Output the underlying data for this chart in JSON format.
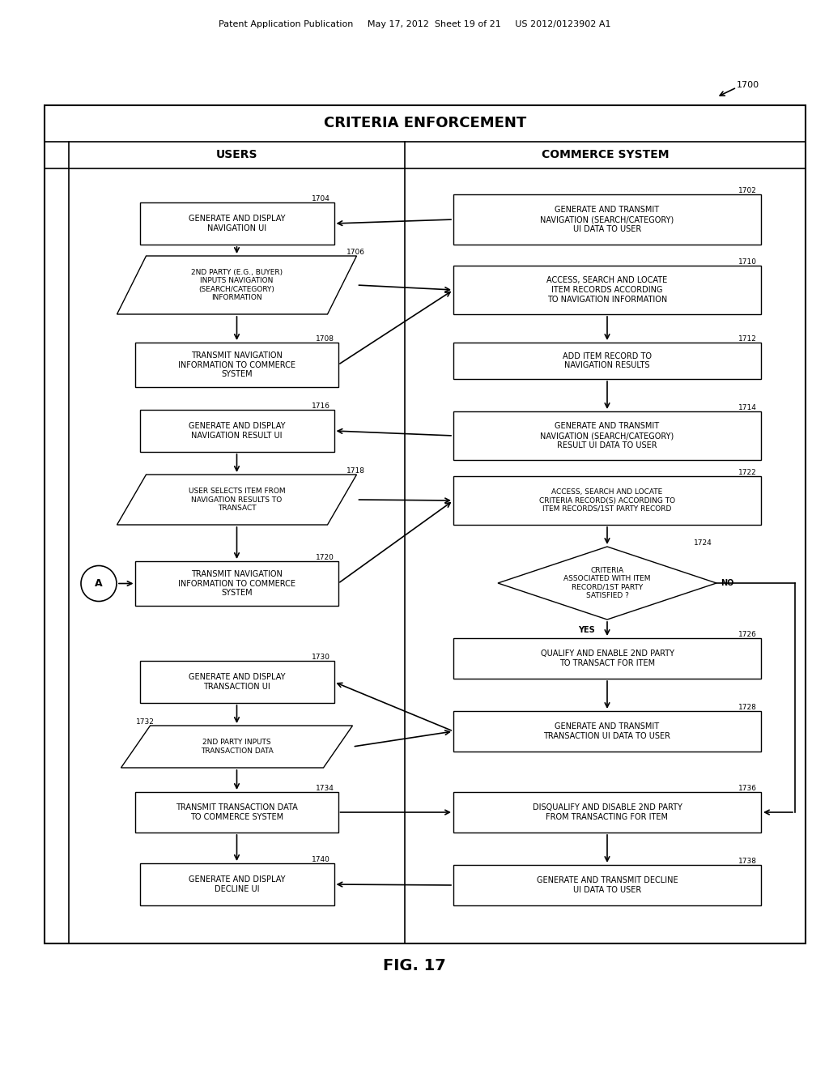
{
  "bg_color": "#ffffff",
  "header_text": "Patent Application Publication     May 17, 2012  Sheet 19 of 21     US 2012/0123902 A1",
  "fig_label": "FIG. 17",
  "label_1700": "1700",
  "outer_box_title": "CRITERIA ENFORCEMENT",
  "col1_header": "USERS",
  "col2_header": "COMMERCE SYSTEM",
  "nodes": {
    "1702": "GENERATE AND TRANSMIT\nNAVIGATION (SEARCH/CATEGORY)\nUI DATA TO USER",
    "1704": "GENERATE AND DISPLAY\nNAVIGATION UI",
    "1706": "2ND PARTY (E.G., BUYER)\nINPUTS NAVIGATION\n(SEARCH/CATEGORY)\nINFORMATION",
    "1708": "TRANSMIT NAVIGATION\nINFORMATION TO COMMERCE\nSYSTEM",
    "1710": "ACCESS, SEARCH AND LOCATE\nITEM RECORDS ACCORDING\nTO NAVIGATION INFORMATION",
    "1712": "ADD ITEM RECORD TO\nNAVIGATION RESULTS",
    "1714": "GENERATE AND TRANSMIT\nNAVIGATION (SEARCH/CATEGORY)\nRESULT UI DATA TO USER",
    "1716": "GENERATE AND DISPLAY\nNAVIGATION RESULT UI",
    "1718": "USER SELECTS ITEM FROM\nNAVIGATION RESULTS TO\nTRANSACT",
    "1720": "TRANSMIT NAVIGATION\nINFORMATION TO COMMERCE\nSYSTEM",
    "1722": "ACCESS, SEARCH AND LOCATE\nCRITERIA RECORD(S) ACCORDING TO\nITEM RECORDS/1ST PARTY RECORD",
    "1724_diamond": "CRITERIA\nASSOCIATED WITH ITEM\nRECORD/1ST PARTY\nSATISFIED ?",
    "1726": "QUALIFY AND ENABLE 2ND PARTY\nTO TRANSACT FOR ITEM",
    "1728": "GENERATE AND TRANSMIT\nTRANSACTION UI DATA TO USER",
    "1730": "GENERATE AND DISPLAY\nTRANSACTION UI",
    "1732": "2ND PARTY INPUTS\nTRANSACTION DATA",
    "1734": "TRANSMIT TRANSACTION DATA\nTO COMMERCE SYSTEM",
    "1736": "DISQUALIFY AND DISABLE 2ND PARTY\nFROM TRANSACTING FOR ITEM",
    "1738": "GENERATE AND TRANSMIT DECLINE\nUI DATA TO USER",
    "1740": "GENERATE AND DISPLAY\nDECLINE UI"
  }
}
